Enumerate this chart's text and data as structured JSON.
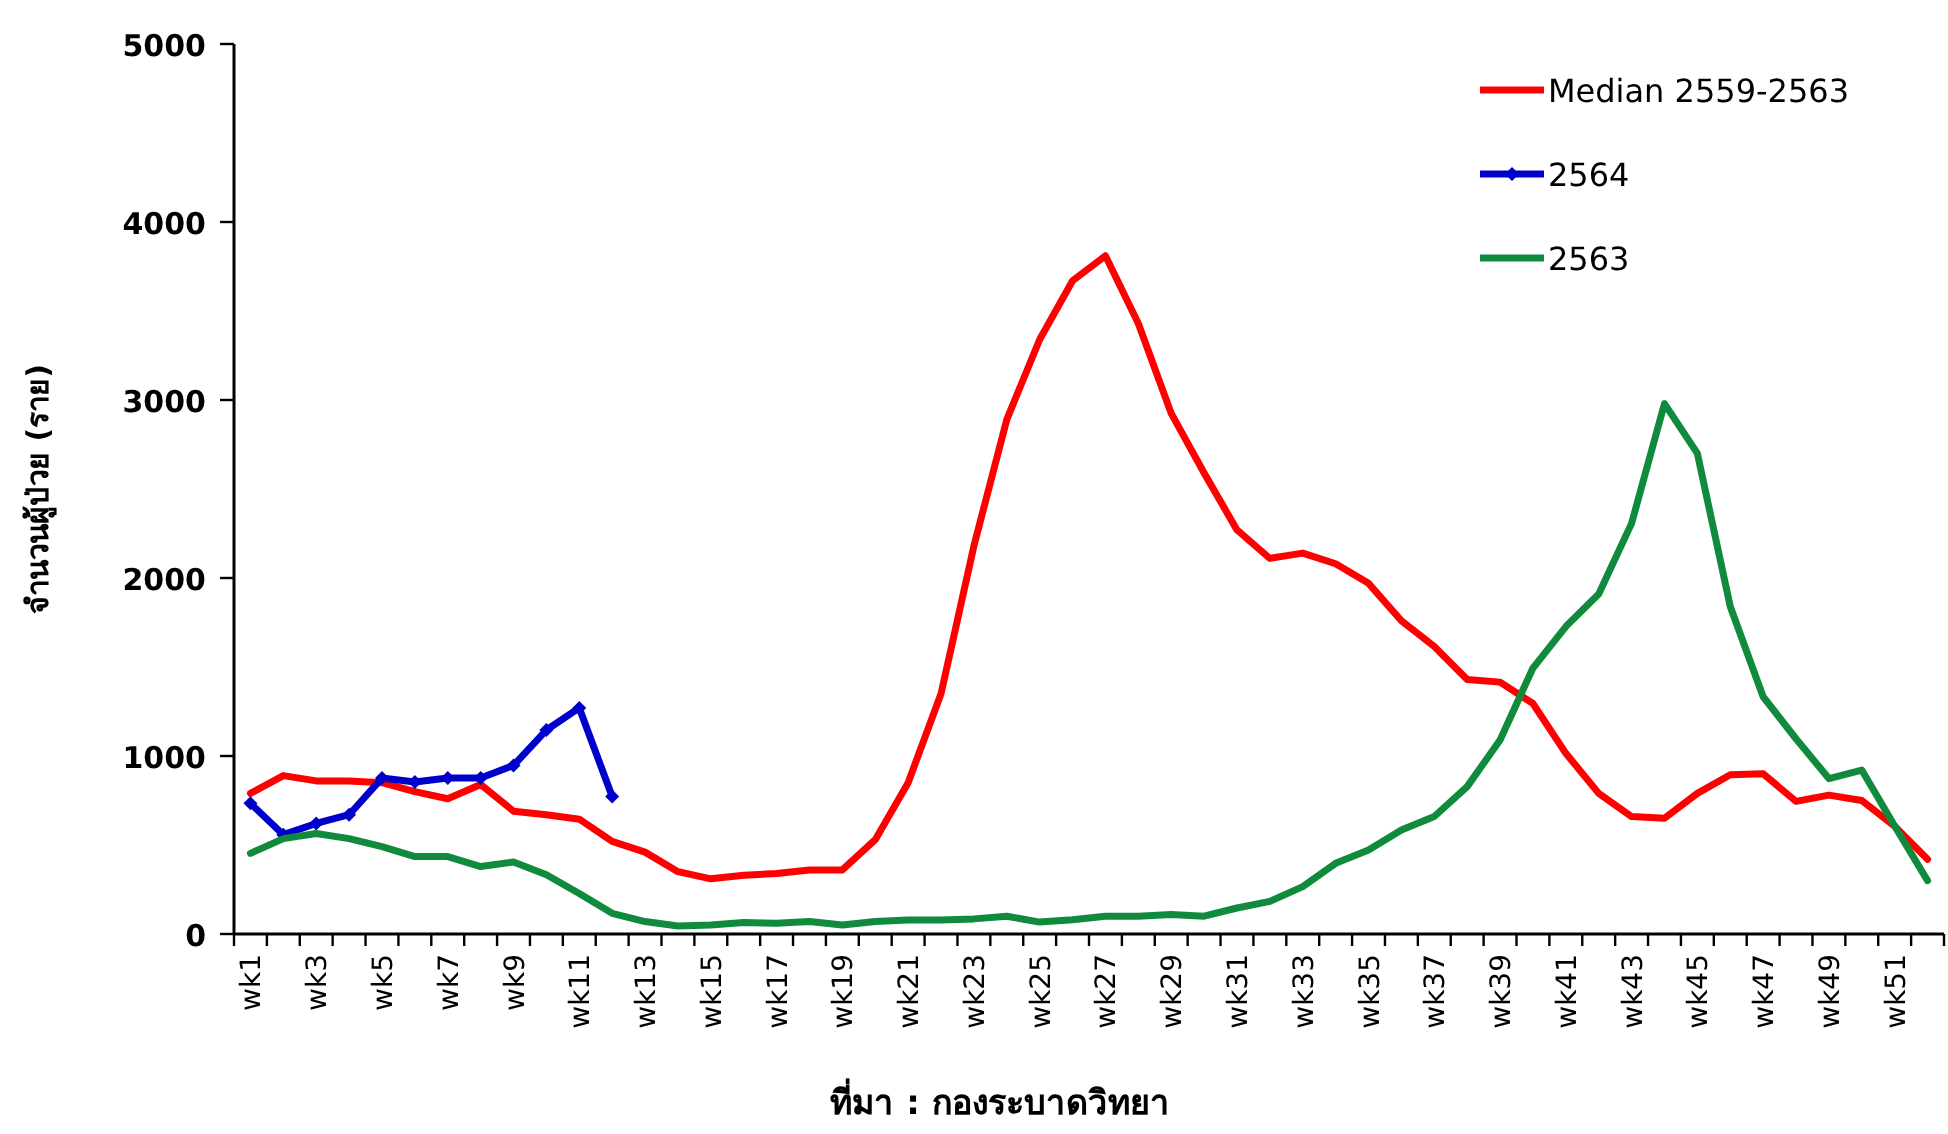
{
  "chart_data": {
    "type": "line",
    "ylabel": "จำนวนผู้ป่วย (ราย)",
    "annotations": [
      "ที่มา : กองระบาดวิทยา"
    ],
    "categories": [
      "wk1",
      null,
      "wk3",
      null,
      "wk5",
      null,
      "wk7",
      null,
      "wk9",
      null,
      "wk11",
      null,
      "wk13",
      null,
      "wk15",
      null,
      "wk17",
      null,
      "wk19",
      null,
      "wk21",
      null,
      "wk23",
      null,
      "wk25",
      null,
      "wk27",
      null,
      "wk29",
      null,
      "wk31",
      null,
      "wk33",
      null,
      "wk35",
      null,
      "wk37",
      null,
      "wk39",
      null,
      "wk41",
      null,
      "wk43",
      null,
      "wk45",
      null,
      "wk47",
      null,
      "wk49",
      null,
      "wk51",
      null
    ],
    "series": [
      {
        "name": "Median 2559-2563",
        "color": "#ff0000",
        "marker": "none",
        "values": [
          790,
          890,
          860,
          860,
          850,
          800,
          760,
          840,
          690,
          670,
          645,
          520,
          460,
          350,
          310,
          330,
          340,
          360,
          360,
          530,
          850,
          1350,
          2180,
          2890,
          3340,
          3670,
          3810,
          3430,
          2925,
          2590,
          2270,
          2110,
          2140,
          2080,
          1970,
          1760,
          1615,
          1430,
          1415,
          1295,
          1015,
          790,
          660,
          650,
          790,
          895,
          900,
          745,
          780,
          750,
          605,
          420
        ]
      },
      {
        "name": "2564",
        "color": "#0000cc",
        "marker": "diamond",
        "values": [
          734,
          558,
          621,
          670,
          876,
          854,
          876,
          876,
          947,
          1146,
          1270,
          772,
          null,
          null,
          null,
          null,
          null,
          null,
          null,
          null,
          null,
          null,
          null,
          null,
          null,
          null,
          null,
          null,
          null,
          null,
          null,
          null,
          null,
          null,
          null,
          null,
          null,
          null,
          null,
          null,
          null,
          null,
          null,
          null,
          null,
          null,
          null,
          null,
          null,
          null,
          null,
          null
        ]
      },
      {
        "name": "2563",
        "color": "#108a3c",
        "marker": "none",
        "values": [
          453,
          536,
          565,
          536,
          491,
          435,
          435,
          379,
          404,
          333,
          228,
          116,
          70,
          45,
          50,
          65,
          60,
          70,
          50,
          70,
          79,
          79,
          85,
          100,
          67,
          80,
          100,
          100,
          110,
          100,
          146,
          183,
          266,
          397,
          472,
          584,
          660,
          828,
          1090,
          1494,
          1727,
          1910,
          2307,
          2980,
          2700,
          1840,
          1333,
          1097,
          873,
          921,
          607,
          300
        ]
      }
    ],
    "ylim": [
      0,
      5000
    ],
    "yticks": [
      0,
      1000,
      2000,
      3000,
      4000,
      5000
    ],
    "legend": "top right"
  }
}
